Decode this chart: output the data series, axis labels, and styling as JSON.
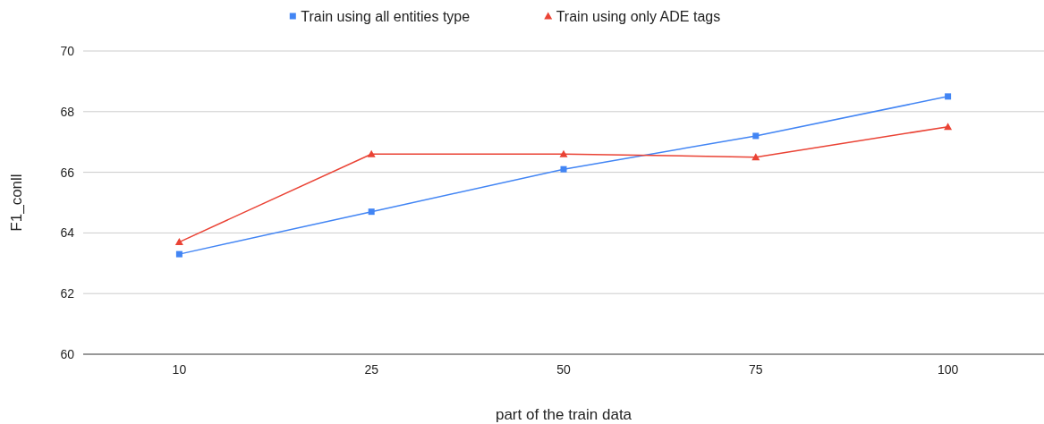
{
  "chart_data": {
    "type": "line",
    "xlabel": "part of the train data",
    "ylabel": "F1_conll",
    "categories": [
      "10",
      "25",
      "50",
      "75",
      "100"
    ],
    "series": [
      {
        "name": "Train using all entities type",
        "color": "#4285f4",
        "marker": "square",
        "values": [
          63.3,
          64.7,
          66.1,
          67.2,
          68.5
        ]
      },
      {
        "name": "Train using only ADE tags",
        "color": "#ea4335",
        "marker": "triangle",
        "values": [
          63.7,
          66.6,
          66.6,
          66.5,
          67.5
        ]
      }
    ],
    "ylim": [
      60,
      70
    ],
    "yticks": [
      60,
      62,
      64,
      66,
      68,
      70
    ],
    "grid": "y",
    "legend": "top"
  }
}
